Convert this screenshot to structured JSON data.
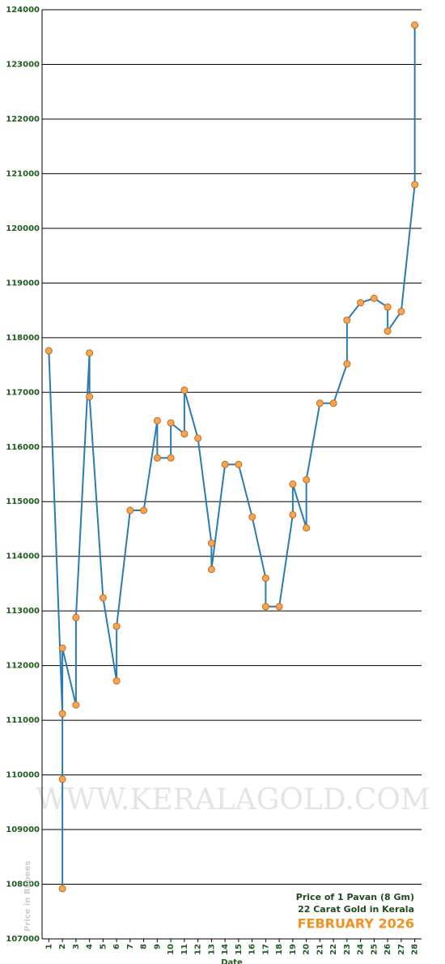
{
  "chart_data": {
    "type": "line",
    "title_lines": [
      "Price of 1 Pavan (8 Gm)",
      "22 Carat Gold in Kerala",
      "FEBRUARY 2026"
    ],
    "watermark": "WWW.KERALAGOLD.COM",
    "y_label": "Price in Rupees",
    "x_label": "Date",
    "x": [
      1,
      2,
      2,
      2,
      2,
      3,
      3,
      4,
      4,
      5,
      6,
      6,
      7,
      8,
      9,
      9,
      10,
      10,
      11,
      11,
      12,
      13,
      13,
      14,
      15,
      16,
      17,
      17,
      18,
      19,
      19,
      20,
      20,
      21,
      22,
      23,
      23,
      24,
      25,
      26,
      26,
      27,
      28,
      28
    ],
    "series": [
      {
        "name": "Price",
        "color": "#2b7bb3",
        "values": [
          117760,
          111120,
          107920,
          109920,
          112320,
          111280,
          112880,
          117720,
          116920,
          113240,
          111720,
          112720,
          114840,
          114840,
          116480,
          115800,
          115800,
          116440,
          116240,
          117040,
          116160,
          114240,
          113760,
          115680,
          115680,
          114720,
          113600,
          113080,
          113080,
          114760,
          115320,
          114520,
          115400,
          116800,
          116800,
          117520,
          118320,
          118640,
          118720,
          118560,
          118120,
          118480,
          120800,
          123720
        ]
      }
    ],
    "marker_color": "#f7a552",
    "xlim": [
      0.5,
      28.5
    ],
    "xticks": [
      1,
      2,
      3,
      4,
      5,
      6,
      7,
      8,
      9,
      10,
      11,
      12,
      13,
      14,
      15,
      16,
      17,
      18,
      19,
      20,
      21,
      22,
      23,
      24,
      25,
      26,
      27,
      28
    ],
    "ylim": [
      107000,
      124000
    ],
    "yticks": [
      107000,
      108000,
      109000,
      110000,
      111000,
      112000,
      113000,
      114000,
      115000,
      116000,
      117000,
      118000,
      119000,
      120000,
      121000,
      122000,
      123000,
      124000
    ],
    "grid": true
  }
}
